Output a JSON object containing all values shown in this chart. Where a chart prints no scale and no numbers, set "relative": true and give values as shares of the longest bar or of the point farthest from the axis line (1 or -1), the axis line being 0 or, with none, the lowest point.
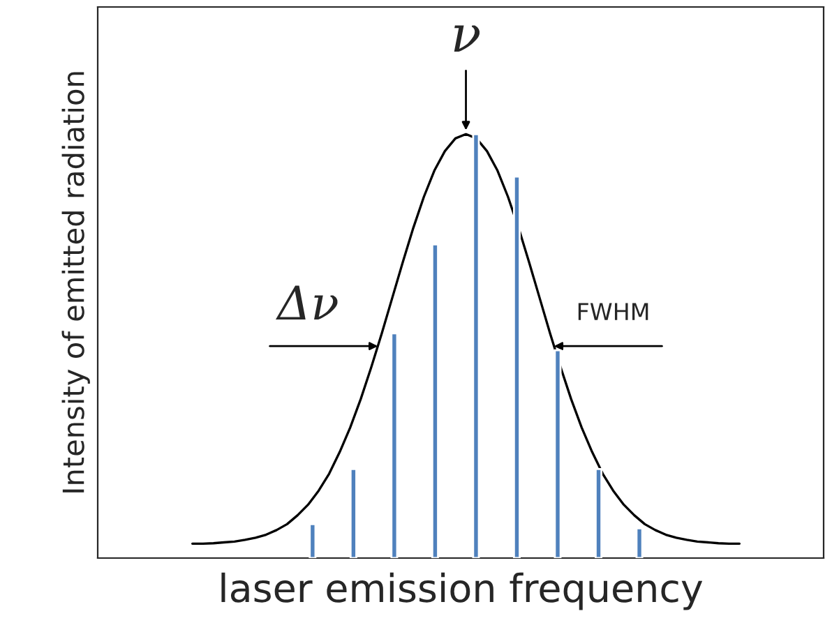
{
  "chart_data": [
    {
      "type": "line",
      "relative": true,
      "color": "#000000",
      "xlabel": "laser emission frequency",
      "ylabel": "Intensity of emitted radiation",
      "annotations": [
        "ν",
        "Δν",
        "FWHM"
      ],
      "categories": [
        null,
        null,
        null,
        null,
        null,
        null,
        null,
        null,
        null,
        null,
        null,
        null,
        null,
        null,
        null,
        null,
        null,
        null,
        null,
        null,
        null,
        null,
        null,
        null,
        null,
        null,
        null,
        null,
        null,
        null,
        null,
        null,
        null,
        null,
        null,
        null,
        null,
        null,
        null,
        null,
        null,
        null,
        null,
        null,
        null,
        null,
        null,
        null,
        null,
        null,
        null,
        null,
        null
      ],
      "values": [
        0.034,
        0.034,
        0.035,
        0.037,
        0.039,
        0.043,
        0.048,
        0.055,
        0.066,
        0.08,
        0.101,
        0.126,
        0.159,
        0.199,
        0.25,
        0.308,
        0.375,
        0.45,
        0.53,
        0.614,
        0.698,
        0.779,
        0.852,
        0.914,
        0.96,
        0.99,
        1.0,
        0.99,
        0.96,
        0.914,
        0.852,
        0.779,
        0.698,
        0.614,
        0.53,
        0.45,
        0.375,
        0.308,
        0.25,
        0.199,
        0.159,
        0.126,
        0.101,
        0.08,
        0.066,
        0.055,
        0.048,
        0.043,
        0.039,
        0.037,
        0.035,
        0.034,
        0.034
      ]
    },
    {
      "type": "bar",
      "relative": true,
      "color": "#4f81bd",
      "categories": [
        null,
        null,
        null,
        null,
        null,
        null,
        null,
        null,
        null
      ],
      "values": [
        0.08,
        0.21,
        0.53,
        0.74,
        1.0,
        0.9,
        0.49,
        0.21,
        0.07
      ]
    }
  ]
}
